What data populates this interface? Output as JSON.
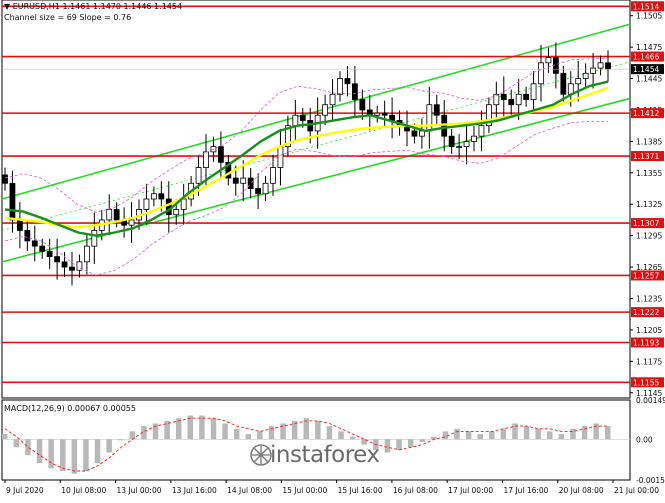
{
  "header": {
    "title": "▼ EURUSD,H1  1.1461 1.1470 1.1446 1.1454",
    "subtitle": "Channel size = 69 Slope = 0.76"
  },
  "macd_label": "MACD(12,26,9) 0.00067 0.00055",
  "watermark": "instaforex",
  "colors": {
    "level_line": "#dd1111",
    "channel": "#22dd22",
    "ma_fast": "#1a8f1a",
    "ma_slow": "#ffff00",
    "bollinger": "#cc66cc",
    "candle": "#000000",
    "macd_hist": "#b8b8b8",
    "macd_signal": "#ee2222"
  },
  "chart_data": {
    "type": "candlestick",
    "symbol": "EURUSD",
    "timeframe": "H1",
    "ylim": [
      1.114,
      1.152
    ],
    "y_ticks": [
      "1.1505",
      "1.1475",
      "1.1445",
      "1.1415",
      "1.1385",
      "1.1355",
      "1.1325",
      "1.1295",
      "1.1265",
      "1.1235",
      "1.1205",
      "1.1175",
      "1.1145"
    ],
    "x_labels": [
      "9 Jul 2020",
      "10 Jul 08:00",
      "13 Jul 00:00",
      "13 Jul 16:00",
      "14 Jul 08:00",
      "15 Jul 00:00",
      "15 Jul 16:00",
      "16 Jul 08:00",
      "17 Jul 00:00",
      "17 Jul 16:00",
      "20 Jul 08:00",
      "21 Jul 00:00"
    ],
    "levels": [
      "1.1514",
      "1.1466",
      "1.1412",
      "1.1371",
      "1.1307",
      "1.1257",
      "1.1222",
      "1.1193",
      "1.1155"
    ],
    "current_price": "1.1454",
    "channel": {
      "size": 69,
      "slope": 0.76
    },
    "close_path": [
      1.1345,
      1.131,
      1.13,
      1.129,
      1.1285,
      1.128,
      1.1275,
      1.127,
      1.1265,
      1.1262,
      1.127,
      1.1285,
      1.13,
      1.131,
      1.132,
      1.131,
      1.1305,
      1.131,
      1.132,
      1.133,
      1.1335,
      1.133,
      1.1315,
      1.132,
      1.133,
      1.1345,
      1.136,
      1.1375,
      1.138,
      1.1365,
      1.135,
      1.1345,
      1.135,
      1.134,
      1.1335,
      1.1345,
      1.136,
      1.138,
      1.14,
      1.141,
      1.1405,
      1.1395,
      1.141,
      1.142,
      1.143,
      1.1445,
      1.144,
      1.1425,
      1.1415,
      1.141,
      1.1412,
      1.141,
      1.1405,
      1.14,
      1.1395,
      1.139,
      1.1395,
      1.142,
      1.141,
      1.139,
      1.138,
      1.138,
      1.1385,
      1.139,
      1.14,
      1.142,
      1.143,
      1.1425,
      1.142,
      1.143,
      1.1425,
      1.144,
      1.146,
      1.1465,
      1.145,
      1.143,
      1.144,
      1.1445,
      1.145,
      1.1455,
      1.146,
      1.1454
    ],
    "ma_fast": [
      1.132,
      1.1318,
      1.1312,
      1.1305,
      1.1298,
      1.1295,
      1.1298,
      1.1302,
      1.131,
      1.132,
      1.1335,
      1.1348,
      1.136,
      1.1372,
      1.1385,
      1.1395,
      1.14,
      1.1402,
      1.1405,
      1.1408,
      1.141,
      1.1405,
      1.14,
      1.1395,
      1.1398,
      1.14,
      1.1402,
      1.1405,
      1.141,
      1.1415,
      1.142,
      1.143,
      1.1438,
      1.1442
    ],
    "ma_slow": [
      1.1312,
      1.131,
      1.1308,
      1.1305,
      1.1303,
      1.1305,
      1.1308,
      1.1312,
      1.1318,
      1.1325,
      1.1333,
      1.1342,
      1.1352,
      1.1362,
      1.1372,
      1.138,
      1.1386,
      1.139,
      1.1393,
      1.1396,
      1.1398,
      1.1399,
      1.14,
      1.14,
      1.1401,
      1.1402,
      1.1404,
      1.1407,
      1.141,
      1.1414,
      1.1418,
      1.1424,
      1.143,
      1.1436
    ],
    "macd_ylim": [
      -0.00154,
      0.00149
    ],
    "macd_ticks": [
      "0.00149",
      "0.00",
      "-0.00154"
    ],
    "macd_hist": [
      0.0002,
      -0.0003,
      -0.0006,
      -0.0009,
      -0.0011,
      -0.0012,
      -0.0013,
      -0.0012,
      -0.0009,
      -0.0005,
      0.0,
      0.0003,
      0.0005,
      0.0006,
      0.0007,
      0.0008,
      0.0009,
      0.0009,
      0.0008,
      0.0006,
      0.0004,
      0.0002,
      0.0003,
      0.0005,
      0.0006,
      0.0007,
      0.0008,
      0.0007,
      0.0005,
      0.0003,
      0.0001,
      -0.0002,
      -0.0004,
      -0.0005,
      -0.0004,
      -0.0003,
      -0.0001,
      0.0001,
      0.0003,
      0.0004,
      0.0003,
      0.0002,
      0.0003,
      0.0004,
      0.0006,
      0.0005,
      0.0004,
      0.0003,
      0.0002,
      0.0004,
      0.0005,
      0.0006,
      0.0005
    ],
    "macd_signal": [
      0.0004,
      0.0001,
      -0.0003,
      -0.0006,
      -0.0009,
      -0.0011,
      -0.0012,
      -0.0012,
      -0.001,
      -0.0007,
      -0.0003,
      0.0,
      0.0003,
      0.0005,
      0.0006,
      0.0007,
      0.0008,
      0.0008,
      0.0008,
      0.0007,
      0.0005,
      0.0004,
      0.0003,
      0.0004,
      0.0005,
      0.0006,
      0.0007,
      0.0007,
      0.0006,
      0.0004,
      0.0002,
      0.0,
      -0.0002,
      -0.0003,
      -0.0004,
      -0.0003,
      -0.0002,
      0.0,
      0.0001,
      0.0003,
      0.0003,
      0.0003,
      0.0003,
      0.0004,
      0.0005,
      0.0005,
      0.0004,
      0.0004,
      0.0003,
      0.0003,
      0.0004,
      0.0005,
      0.0005
    ]
  }
}
